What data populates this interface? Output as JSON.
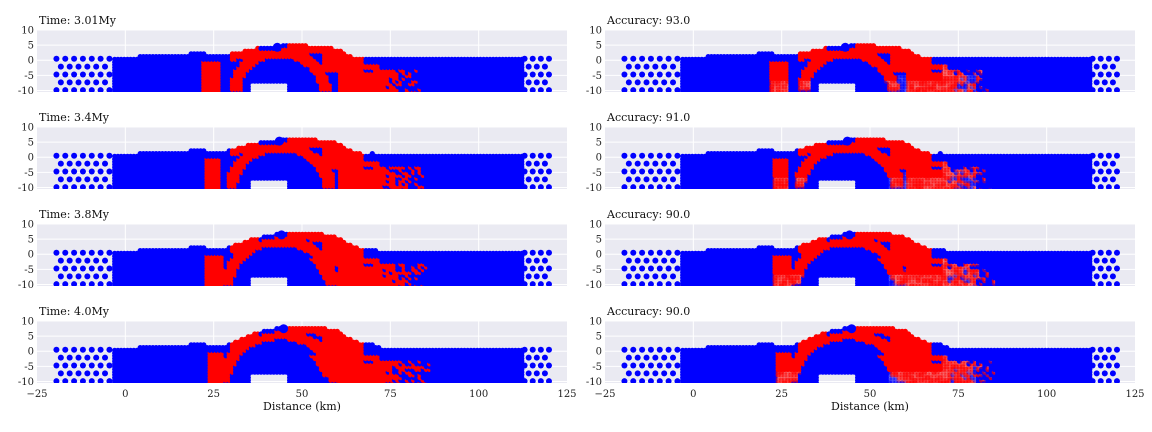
{
  "figure": {
    "xlabel": "Distance (km)",
    "x_ticks": [
      -25,
      0,
      25,
      50,
      75,
      100,
      125
    ],
    "y_ticks": [
      10,
      5,
      0,
      -5,
      -10
    ],
    "xlim": [
      -25,
      125
    ],
    "ylim": [
      -10.5,
      10
    ],
    "colors": {
      "panel_bg": "#eaeaf2",
      "grid": "#ffffff",
      "blue": "#0000ff",
      "red": "#ff0000"
    }
  },
  "chart_data": [
    {
      "type": "scatter",
      "title": "Time: 3.01My",
      "column": "left",
      "row": 0,
      "stage": 0,
      "uncertainty": 0
    },
    {
      "type": "scatter",
      "title": "Accuracy: 93.0",
      "column": "right",
      "row": 0,
      "stage": 0,
      "uncertainty": 1
    },
    {
      "type": "scatter",
      "title": "Time: 3.4My",
      "column": "left",
      "row": 1,
      "stage": 1,
      "uncertainty": 0
    },
    {
      "type": "scatter",
      "title": "Accuracy: 91.0",
      "column": "right",
      "row": 1,
      "stage": 1,
      "uncertainty": 1
    },
    {
      "type": "scatter",
      "title": "Time: 3.8My",
      "column": "left",
      "row": 2,
      "stage": 2,
      "uncertainty": 0
    },
    {
      "type": "scatter",
      "title": "Accuracy: 90.0",
      "column": "right",
      "row": 2,
      "stage": 2,
      "uncertainty": 1
    },
    {
      "type": "scatter",
      "title": "Time: 4.0My",
      "column": "left",
      "row": 3,
      "stage": 3,
      "uncertainty": 0
    },
    {
      "type": "scatter",
      "title": "Accuracy: 90.0",
      "column": "right",
      "row": 3,
      "stage": 3,
      "uncertainty": 1
    }
  ]
}
